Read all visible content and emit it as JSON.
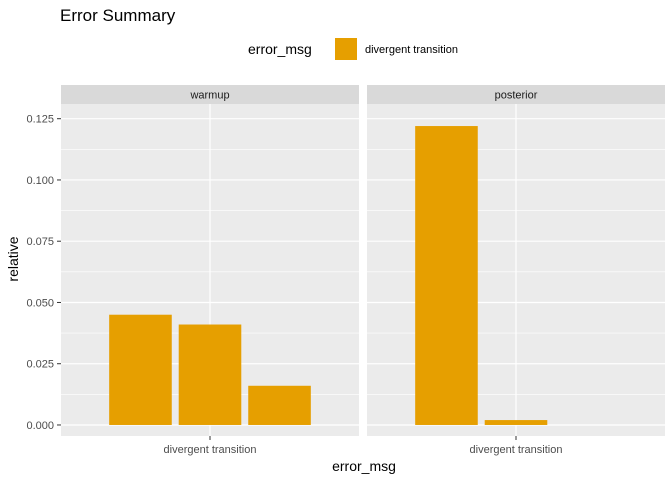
{
  "chart_data": {
    "type": "bar",
    "title": "Error Summary",
    "xlabel": "error_msg",
    "ylabel": "relative",
    "ylim": [
      -0.0045,
      0.131
    ],
    "yticks": [
      "0.000",
      "0.025",
      "0.050",
      "0.075",
      "0.100",
      "0.125"
    ],
    "ytick_values": [
      0,
      0.025,
      0.05,
      0.075,
      0.1,
      0.125
    ],
    "legend": {
      "title": "error_msg",
      "entries": [
        "divergent transition"
      ],
      "placement": "top"
    },
    "grid": true,
    "position": "dodge",
    "colors": {
      "bar": "#E69F00",
      "panel": "#EBEBEB",
      "grid": "#FFFFFF",
      "strip": "#D9D9D9"
    },
    "facets": [
      {
        "label": "warmup",
        "category": "divergent transition",
        "values": [
          0.045,
          0.041,
          0.016
        ]
      },
      {
        "label": "posterior",
        "category": "divergent transition",
        "values": [
          0.122,
          0.002
        ]
      }
    ]
  }
}
